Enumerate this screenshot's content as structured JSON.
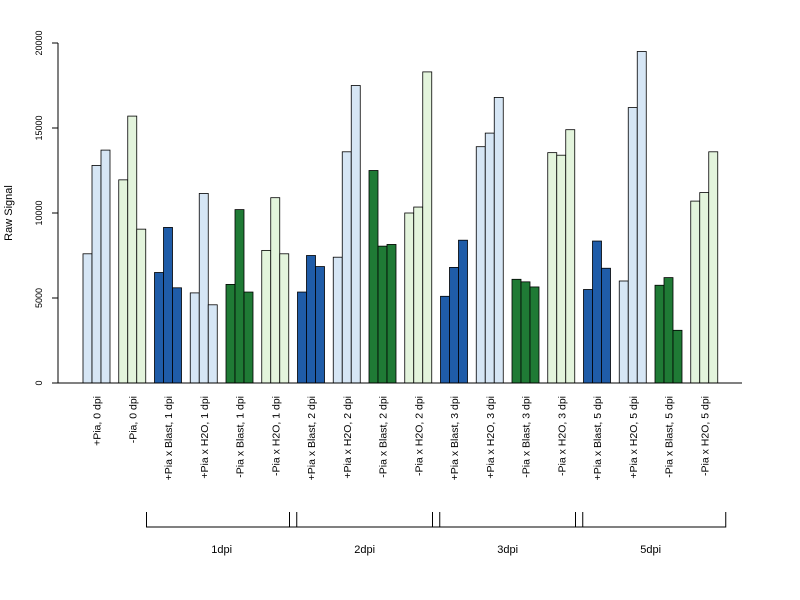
{
  "chart_data": {
    "type": "bar",
    "ylabel": "Raw Signal",
    "xlabel": "",
    "ylim": [
      0,
      20000
    ],
    "yticks": [
      0,
      5000,
      10000,
      15000,
      20000
    ],
    "colors": {
      "light_blue": "#d6e6f5",
      "dark_blue": "#1f5ca8",
      "light_green": "#e3f4dc",
      "dark_green": "#1f7a35"
    },
    "categories": [
      {
        "label": "+Pia, 0 dpi",
        "color": "light_blue",
        "values": [
          7600,
          12800,
          13700
        ]
      },
      {
        "label": "-Pia, 0 dpi",
        "color": "light_green",
        "values": [
          11950,
          15700,
          9050
        ]
      },
      {
        "label": "+Pia x Blast, 1 dpi",
        "color": "dark_blue",
        "values": [
          6500,
          9150,
          5600
        ]
      },
      {
        "label": "+Pia x H2O, 1 dpi",
        "color": "light_blue",
        "values": [
          5300,
          11150,
          4600
        ]
      },
      {
        "label": "-Pia x Blast, 1 dpi",
        "color": "dark_green",
        "values": [
          5800,
          10200,
          5350
        ]
      },
      {
        "label": "-Pia x H2O, 1 dpi",
        "color": "light_green",
        "values": [
          7800,
          10900,
          7600
        ]
      },
      {
        "label": "+Pia x Blast, 2 dpi",
        "color": "dark_blue",
        "values": [
          5350,
          7500,
          6850
        ]
      },
      {
        "label": "+Pia x H2O, 2 dpi",
        "color": "light_blue",
        "values": [
          7400,
          13600,
          17500
        ]
      },
      {
        "label": "-Pia x Blast, 2 dpi",
        "color": "dark_green",
        "values": [
          12500,
          8050,
          8150
        ]
      },
      {
        "label": "-Pia x H2O, 2 dpi",
        "color": "light_green",
        "values": [
          10000,
          10350,
          18300
        ]
      },
      {
        "label": "+Pia x Blast, 3 dpi",
        "color": "dark_blue",
        "values": [
          5100,
          6800,
          8400
        ]
      },
      {
        "label": "+Pia x H2O, 3 dpi",
        "color": "light_blue",
        "values": [
          13900,
          14700,
          16800
        ]
      },
      {
        "label": "-Pia x Blast, 3 dpi",
        "color": "dark_green",
        "values": [
          6100,
          5950,
          5650
        ]
      },
      {
        "label": "-Pia x H2O, 3 dpi",
        "color": "light_green",
        "values": [
          13550,
          13400,
          14900
        ]
      },
      {
        "label": "+Pia x Blast, 5 dpi",
        "color": "dark_blue",
        "values": [
          5500,
          8350,
          6750
        ]
      },
      {
        "label": "+Pia x H2O, 5 dpi",
        "color": "light_blue",
        "values": [
          6000,
          16200,
          19500
        ]
      },
      {
        "label": "-Pia x Blast, 5 dpi",
        "color": "dark_green",
        "values": [
          5750,
          6200,
          3100
        ]
      },
      {
        "label": "-Pia x H2O, 5 dpi",
        "color": "light_green",
        "values": [
          10700,
          11200,
          13600
        ]
      }
    ],
    "groups": [
      {
        "label": "1dpi",
        "first_category": 2,
        "last_category": 5
      },
      {
        "label": "2dpi",
        "first_category": 6,
        "last_category": 9
      },
      {
        "label": "3dpi",
        "first_category": 10,
        "last_category": 13
      },
      {
        "label": "5dpi",
        "first_category": 14,
        "last_category": 17
      }
    ]
  }
}
